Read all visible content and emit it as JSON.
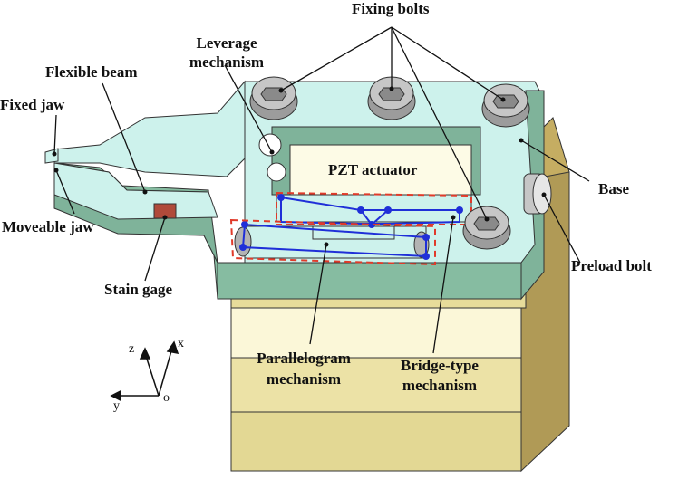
{
  "figure": {
    "labels": {
      "fixing_bolts": "Fixing bolts",
      "leverage_mechanism_1": "Leverage",
      "leverage_mechanism_2": "mechanism",
      "flexible_beam": "Flexible beam",
      "fixed_jaw": "Fixed jaw",
      "moveable_jaw": "Moveable jaw",
      "pzt_actuator": "PZT actuator",
      "base": "Base",
      "preload_bolt": "Preload bolt",
      "stain_gage": "Stain gage",
      "parallelogram_mechanism_1": "Parallelogram",
      "parallelogram_mechanism_2": "mechanism",
      "bridge_type_mechanism_1": "Bridge-type",
      "bridge_type_mechanism_2": "mechanism"
    },
    "axes": {
      "z": "z",
      "x": "x",
      "y": "y",
      "o": "o"
    },
    "colors": {
      "base_top": "#cdf2ec",
      "base_front": "#7fb39a",
      "block_light": "#fbf7d8",
      "block_mid": "#e7dc9a",
      "block_side": "#a88f4c",
      "actuator": "#fdfbe6",
      "bolt": "#b0b0b0",
      "mechanism_line": "#1f2fd8",
      "dashed_box": "#e03a2a",
      "gage": "#b04a3a"
    }
  }
}
